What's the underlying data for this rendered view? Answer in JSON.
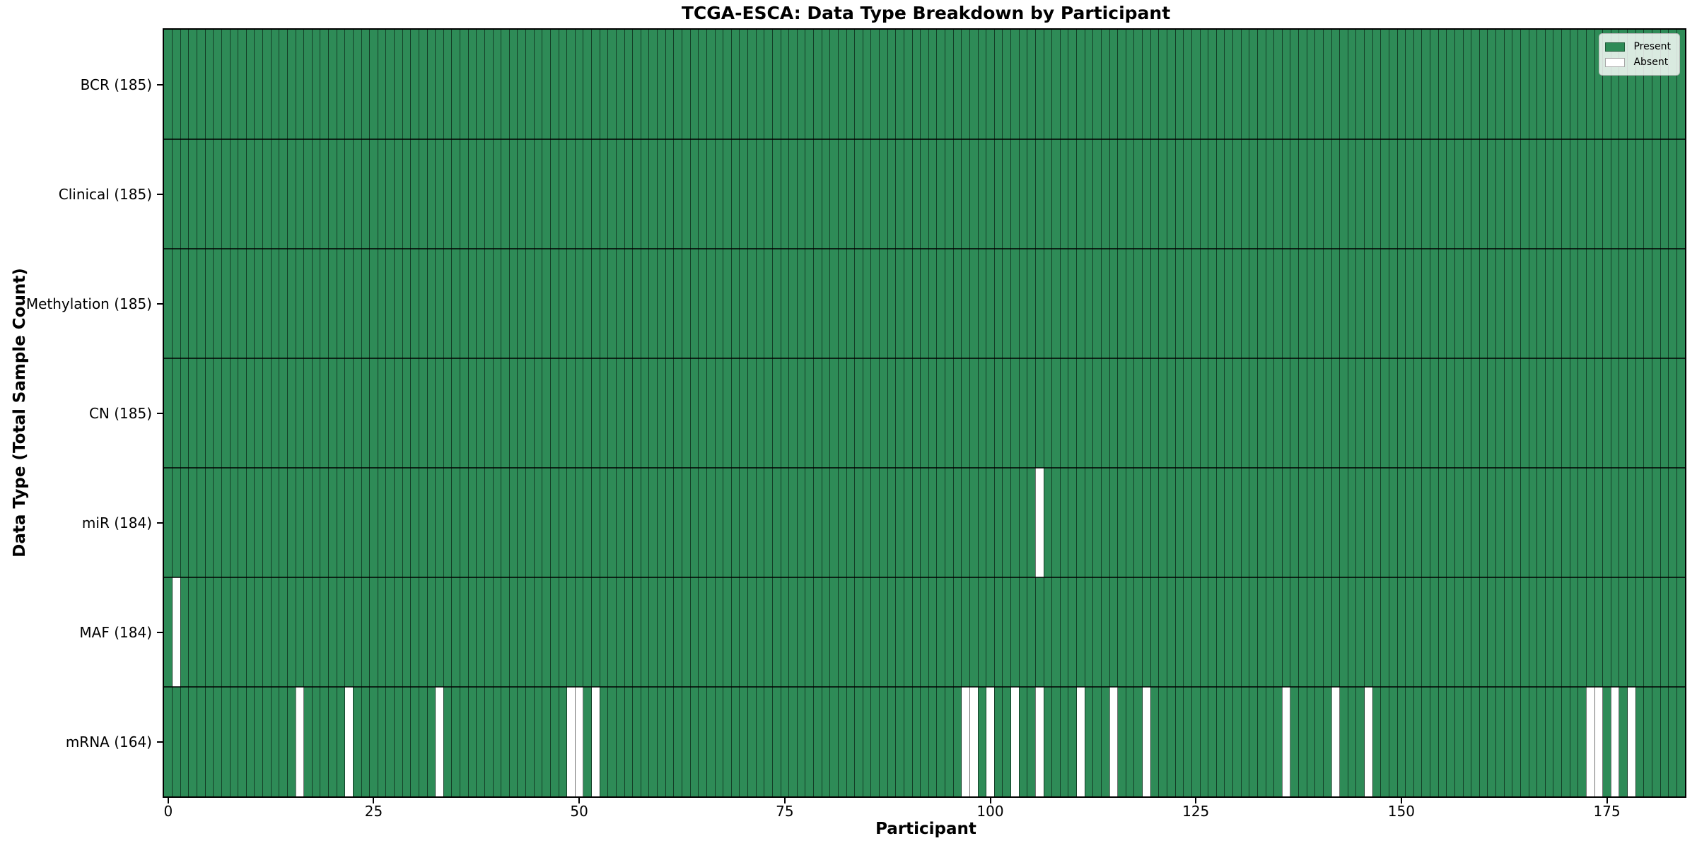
{
  "chart_data": {
    "type": "heatmap",
    "title": "TCGA-ESCA: Data Type Breakdown by Participant",
    "xlabel": "Participant",
    "ylabel": "Data Type (Total Sample Count)",
    "n_participants": 185,
    "x_ticks": [
      0,
      25,
      50,
      75,
      100,
      125,
      150,
      175
    ],
    "present_color": "#2e8b57",
    "absent_color": "#ffffff",
    "grid": true,
    "legend_position": "upper right",
    "legend": [
      {
        "label": "Present",
        "color": "#2e8b57"
      },
      {
        "label": "Absent",
        "color": "#ffffff"
      }
    ],
    "rows": [
      {
        "label": "BCR (185)",
        "total_samples": 185,
        "absent_participants": []
      },
      {
        "label": "Clinical (185)",
        "total_samples": 185,
        "absent_participants": []
      },
      {
        "label": "Methylation (185)",
        "total_samples": 185,
        "absent_participants": []
      },
      {
        "label": "CN (185)",
        "total_samples": 185,
        "absent_participants": []
      },
      {
        "label": "miR (184)",
        "total_samples": 184,
        "absent_participants": [
          106
        ]
      },
      {
        "label": "MAF (184)",
        "total_samples": 184,
        "absent_participants": [
          1
        ]
      },
      {
        "label": "mRNA (164)",
        "total_samples": 164,
        "absent_participants": [
          16,
          22,
          33,
          49,
          50,
          52,
          97,
          98,
          100,
          103,
          106,
          111,
          115,
          119,
          136,
          142,
          146,
          173,
          174,
          176,
          178
        ]
      }
    ]
  }
}
